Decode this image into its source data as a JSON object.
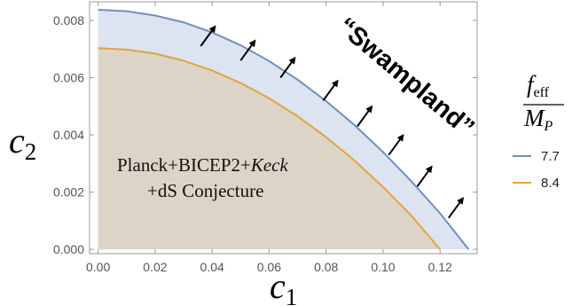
{
  "chart_data": {
    "type": "area",
    "xlabel": "c",
    "xlabel_sub": "1",
    "ylabel": "c",
    "ylabel_sub": "2",
    "xlim": [
      -0.003,
      0.133
    ],
    "ylim": [
      -0.00015,
      0.00865
    ],
    "xticks": [
      "0.00",
      "0.02",
      "0.04",
      "0.06",
      "0.08",
      "0.10",
      "0.12"
    ],
    "xtick_values": [
      0.0,
      0.02,
      0.04,
      0.06,
      0.08,
      0.1,
      0.12
    ],
    "yticks": [
      "0.000",
      "0.002",
      "0.004",
      "0.006",
      "0.008"
    ],
    "ytick_values": [
      0.0,
      0.002,
      0.004,
      0.006,
      0.008
    ],
    "grid": false,
    "series": [
      {
        "name": "7.7",
        "color": "#6f8fbf",
        "fill": "#dce4f1",
        "x": [
          0.0,
          0.01,
          0.02,
          0.03,
          0.04,
          0.05,
          0.06,
          0.07,
          0.08,
          0.09,
          0.1,
          0.11,
          0.12,
          0.13
        ],
        "y": [
          0.00837,
          0.00832,
          0.00817,
          0.00793,
          0.00758,
          0.00713,
          0.00658,
          0.00593,
          0.00518,
          0.00434,
          0.0034,
          0.00237,
          0.00126,
          0.0
        ]
      },
      {
        "name": "8.4",
        "color": "#e0a53a",
        "fill": "#ddd4c8",
        "x": [
          0.0,
          0.01,
          0.02,
          0.03,
          0.04,
          0.05,
          0.06,
          0.07,
          0.08,
          0.09,
          0.1,
          0.11,
          0.12
        ],
        "y": [
          0.00703,
          0.00698,
          0.00684,
          0.00659,
          0.00625,
          0.00581,
          0.00528,
          0.00465,
          0.00392,
          0.0031,
          0.00218,
          0.00117,
          0.0
        ]
      }
    ],
    "legend": {
      "title_num": "f",
      "title_num_sub": "eff",
      "title_den": "M",
      "title_den_sub": "P",
      "placement": "right"
    },
    "annotations": {
      "region_line1": "Planck+BICEP2+",
      "region_line1_italic": "Keck",
      "region_line2": "+dS Conjecture",
      "swampland": "“Swampland”"
    },
    "arrows": [
      {
        "x": 0.036,
        "y": 0.0071
      },
      {
        "x": 0.05,
        "y": 0.0066
      },
      {
        "x": 0.064,
        "y": 0.006
      },
      {
        "x": 0.079,
        "y": 0.0052
      },
      {
        "x": 0.091,
        "y": 0.0043
      },
      {
        "x": 0.102,
        "y": 0.0033
      },
      {
        "x": 0.112,
        "y": 0.0022
      },
      {
        "x": 0.123,
        "y": 0.0011
      }
    ]
  }
}
